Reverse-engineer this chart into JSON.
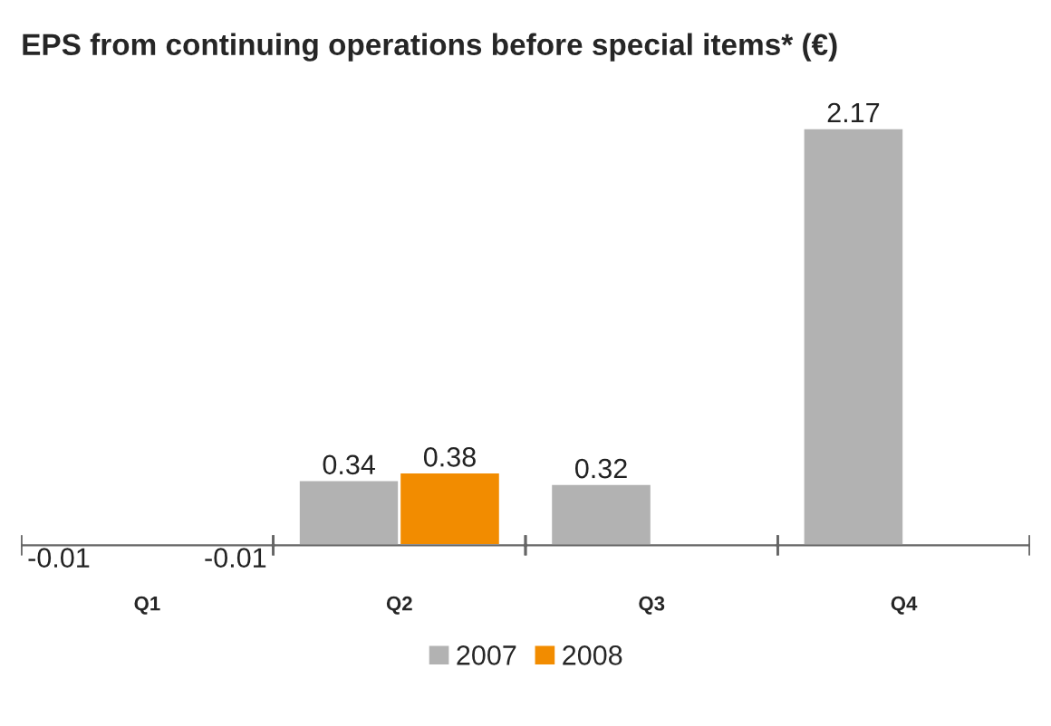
{
  "chart_data": {
    "type": "bar",
    "title": "EPS from continuing operations before special items* (€)",
    "categories": [
      "Q1",
      "Q2",
      "Q3",
      "Q4"
    ],
    "series": [
      {
        "name": "2007",
        "color": "#b2b2b2",
        "values": [
          -0.01,
          0.34,
          0.32,
          2.17
        ]
      },
      {
        "name": "2008",
        "color": "#f28c00",
        "values": [
          -0.01,
          0.38,
          null,
          null
        ]
      }
    ],
    "data_labels": true,
    "legend": "bottom",
    "grid": false
  }
}
